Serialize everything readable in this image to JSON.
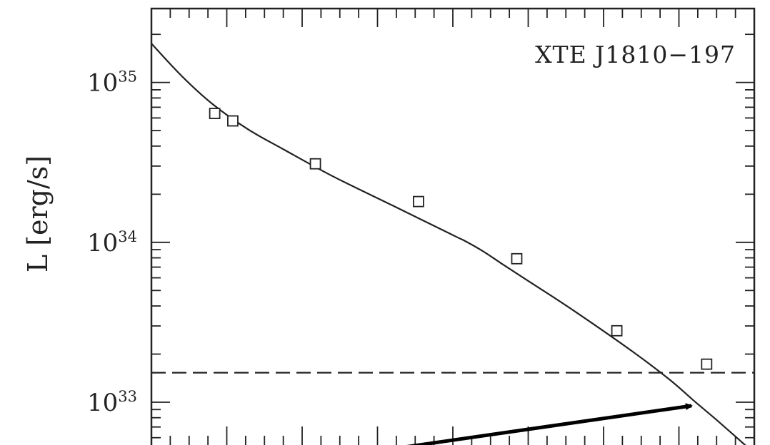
{
  "chart_data": {
    "type": "scatter",
    "annotation": "XTE J1810−197",
    "ylabel": "L [erg/s]",
    "yscale": "log",
    "ylim": [
      5.4e+32,
      2.9e+35
    ],
    "xlim": [
      0,
      1
    ],
    "grid": false,
    "y_ticks": [
      {
        "base": "10",
        "exp": "35",
        "value": 1e+35
      },
      {
        "base": "10",
        "exp": "34",
        "value": 1e+34
      },
      {
        "base": "10",
        "exp": "33",
        "value": 1e+33
      }
    ],
    "series": [
      {
        "kind": "points",
        "marker": "open-square",
        "x": [
          0.105,
          0.135,
          0.272,
          0.443,
          0.606,
          0.772,
          0.921
        ],
        "y": [
          6.4e+34,
          5.75e+34,
          3.1e+34,
          1.8e+34,
          7.9e+33,
          2.8e+33,
          1.73e+33
        ]
      },
      {
        "kind": "model-curve",
        "style": "solid",
        "x": [
          0.0,
          0.05,
          0.1,
          0.16,
          0.22,
          0.3,
          0.4,
          0.5,
          0.52,
          0.55,
          0.58,
          0.62,
          0.7,
          0.8,
          0.86,
          0.9,
          0.94,
          1.0
        ],
        "y": [
          1.75e+35,
          1.1e+35,
          7.4e+34,
          5.1e+34,
          3.8e+34,
          2.6e+34,
          1.7e+34,
          1.11e+34,
          1.02e+34,
          8.8e+33,
          7.4e+33,
          5.9e+33,
          3.75e+33,
          2.05e+33,
          1.38e+33,
          1.02e+33,
          7.6e+32,
          4.8e+32
        ]
      },
      {
        "kind": "threshold",
        "style": "dashed",
        "y": 1.53e+33
      }
    ]
  }
}
